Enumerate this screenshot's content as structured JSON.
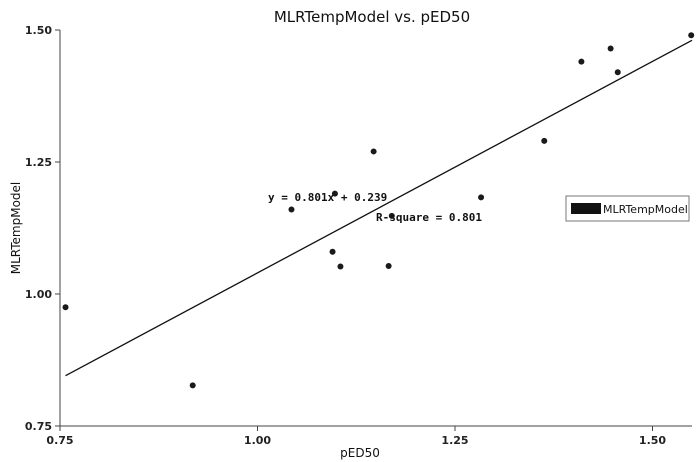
{
  "chart_data": {
    "type": "scatter",
    "title": "MLRTempModel vs. pED50",
    "xlabel": "pED50",
    "ylabel": "MLRTempModel",
    "xlim": [
      0.75,
      1.55
    ],
    "ylim": [
      0.75,
      1.5
    ],
    "x_ticks": [
      "0.75",
      "1.00",
      "1.25",
      "1.50"
    ],
    "y_ticks": [
      "0.75",
      "1.00",
      "1.25",
      "1.50"
    ],
    "x_tick_values": [
      0.75,
      1.0,
      1.25,
      1.5
    ],
    "y_tick_values": [
      0.75,
      1.0,
      1.25,
      1.5
    ],
    "series": [
      {
        "name": "MLRTempModel",
        "points": [
          [
            0.757,
            0.975
          ],
          [
            0.918,
            0.827
          ],
          [
            1.043,
            1.16
          ],
          [
            1.095,
            1.08
          ],
          [
            1.098,
            1.19
          ],
          [
            1.105,
            1.052
          ],
          [
            1.147,
            1.27
          ],
          [
            1.166,
            1.053
          ],
          [
            1.17,
            1.148
          ],
          [
            1.283,
            1.183
          ],
          [
            1.363,
            1.29
          ],
          [
            1.41,
            1.44
          ],
          [
            1.447,
            1.465
          ],
          [
            1.456,
            1.42
          ],
          [
            1.549,
            1.49
          ]
        ]
      }
    ],
    "fit_line": {
      "slope": 0.801,
      "intercept": 0.239,
      "x_range": [
        0.757,
        1.55
      ]
    },
    "annotations": {
      "equation": "y = 0.801x + 0.239",
      "r_square": "R-square = 0.801"
    },
    "legend": {
      "position": "right",
      "label": "MLRTempModel"
    },
    "grid": false,
    "colors": {
      "points": "#1a1a1a",
      "line": "#111111"
    }
  }
}
